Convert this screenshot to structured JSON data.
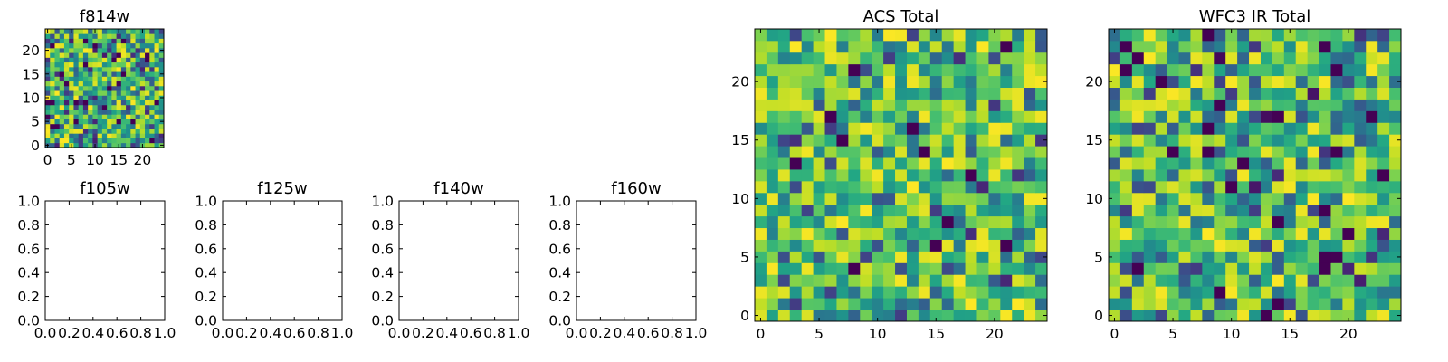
{
  "chart_data": [
    {
      "type": "heatmap",
      "title": "f814w",
      "grid_size": 25,
      "seed": 814,
      "bias": 0.5,
      "xlim": [
        -0.5,
        24.5
      ],
      "ylim": [
        -0.5,
        24.5
      ],
      "xticks": [
        0,
        5,
        10,
        15,
        20
      ],
      "yticks": [
        0,
        5,
        10,
        15,
        20
      ],
      "xtick_labels": [
        "0",
        "5",
        "10",
        "15",
        "20"
      ],
      "ytick_labels": [
        "0",
        "5",
        "10",
        "15",
        "20"
      ],
      "colormap": "viridis"
    },
    {
      "type": "heatmap",
      "title": "f105w",
      "empty": true,
      "xlim": [
        0,
        1
      ],
      "ylim": [
        0,
        1
      ],
      "xticks": [
        0,
        0.2,
        0.4,
        0.6,
        0.8,
        1.0
      ],
      "yticks": [
        0,
        0.2,
        0.4,
        0.6,
        0.8,
        1.0
      ],
      "xtick_labels": [
        "0.0",
        "0.2",
        "0.4",
        "0.6",
        "0.8",
        "1.0"
      ],
      "ytick_labels": [
        "0.0",
        "0.2",
        "0.4",
        "0.6",
        "0.8",
        "1.0"
      ]
    },
    {
      "type": "heatmap",
      "title": "f125w",
      "empty": true,
      "xlim": [
        0,
        1
      ],
      "ylim": [
        0,
        1
      ],
      "xticks": [
        0,
        0.2,
        0.4,
        0.6,
        0.8,
        1.0
      ],
      "yticks": [
        0,
        0.2,
        0.4,
        0.6,
        0.8,
        1.0
      ],
      "xtick_labels": [
        "0.0",
        "0.2",
        "0.4",
        "0.6",
        "0.8",
        "1.0"
      ],
      "ytick_labels": [
        "0.0",
        "0.2",
        "0.4",
        "0.6",
        "0.8",
        "1.0"
      ]
    },
    {
      "type": "heatmap",
      "title": "f140w",
      "empty": true,
      "xlim": [
        0,
        1
      ],
      "ylim": [
        0,
        1
      ],
      "xticks": [
        0,
        0.2,
        0.4,
        0.6,
        0.8,
        1.0
      ],
      "yticks": [
        0,
        0.2,
        0.4,
        0.6,
        0.8,
        1.0
      ],
      "xtick_labels": [
        "0.0",
        "0.2",
        "0.4",
        "0.6",
        "0.8",
        "1.0"
      ],
      "ytick_labels": [
        "0.0",
        "0.2",
        "0.4",
        "0.6",
        "0.8",
        "1.0"
      ]
    },
    {
      "type": "heatmap",
      "title": "f160w",
      "empty": true,
      "xlim": [
        0,
        1
      ],
      "ylim": [
        0,
        1
      ],
      "xticks": [
        0,
        0.2,
        0.4,
        0.6,
        0.8,
        1.0
      ],
      "yticks": [
        0,
        0.2,
        0.4,
        0.6,
        0.8,
        1.0
      ],
      "xtick_labels": [
        "0.0",
        "0.2",
        "0.4",
        "0.6",
        "0.8",
        "1.0"
      ],
      "ytick_labels": [
        "0.0",
        "0.2",
        "0.4",
        "0.6",
        "0.8",
        "1.0"
      ]
    },
    {
      "type": "heatmap",
      "title": "ACS Total",
      "grid_size": 25,
      "seed": 1507,
      "bias": 0.68,
      "xlim": [
        -0.5,
        24.5
      ],
      "ylim": [
        -0.5,
        24.5
      ],
      "xticks": [
        0,
        5,
        10,
        15,
        20
      ],
      "yticks": [
        0,
        5,
        10,
        15,
        20
      ],
      "xtick_labels": [
        "0",
        "5",
        "10",
        "15",
        "20"
      ],
      "ytick_labels": [
        "0",
        "5",
        "10",
        "15",
        "20"
      ],
      "colormap": "viridis"
    },
    {
      "type": "heatmap",
      "title": "WFC3 IR Total",
      "grid_size": 25,
      "seed": 3210,
      "bias": 0.6,
      "xlim": [
        -0.5,
        24.5
      ],
      "ylim": [
        -0.5,
        24.5
      ],
      "xticks": [
        0,
        5,
        10,
        15,
        20
      ],
      "yticks": [
        0,
        5,
        10,
        15,
        20
      ],
      "xtick_labels": [
        "0",
        "5",
        "10",
        "15",
        "20"
      ],
      "ytick_labels": [
        "0",
        "5",
        "10",
        "15",
        "20"
      ],
      "colormap": "viridis"
    }
  ]
}
